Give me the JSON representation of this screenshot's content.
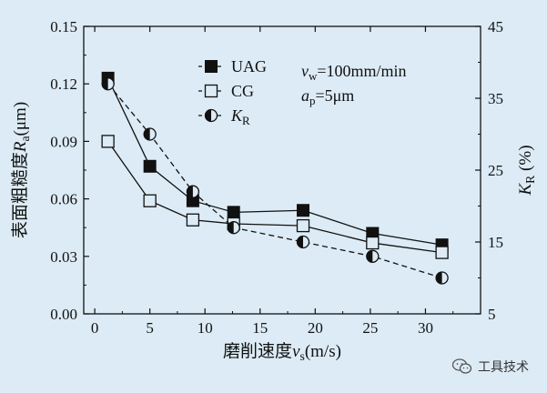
{
  "chart_data": {
    "type": "line",
    "title": "",
    "xlabel": "磨削速度",
    "xlabel_var": "v",
    "xlabel_sub": "s",
    "xlabel_unit": "(m/s)",
    "ylabel_left": "表面粗糙度",
    "ylabel_left_var": "R",
    "ylabel_left_sub": "a",
    "ylabel_left_unit": "(μm)",
    "ylabel_right_var": "K",
    "ylabel_right_sub": "R",
    "ylabel_right_unit": "(%)",
    "xlim": [
      -1,
      35
    ],
    "ylim_left": [
      0.0,
      0.15
    ],
    "ylim_right": [
      5,
      45
    ],
    "x_ticks": [
      0,
      5,
      10,
      15,
      20,
      25,
      30
    ],
    "x_tick_labels": [
      "0",
      "5",
      "10",
      "15",
      "20",
      "25",
      "30"
    ],
    "y_left_ticks": [
      0.0,
      0.03,
      0.06,
      0.09,
      0.12,
      0.15
    ],
    "y_left_tick_labels": [
      "0.00",
      "0.03",
      "0.06",
      "0.09",
      "0.12",
      "0.15"
    ],
    "y_right_ticks": [
      5,
      15,
      25,
      35,
      45
    ],
    "y_right_tick_labels": [
      "5",
      "15",
      "25",
      "35",
      "45"
    ],
    "grid": false,
    "legend_position": "top-right",
    "annotations": [
      {
        "var": "v",
        "sub": "w",
        "text": "=100mm/min"
      },
      {
        "var": "a",
        "sub": "p",
        "text": "=5μm"
      }
    ],
    "series": [
      {
        "name": "UAG",
        "axis": "left",
        "marker": "filled-square",
        "line": "solid",
        "x": [
          1.2,
          5.0,
          8.9,
          12.6,
          18.9,
          25.2,
          31.5
        ],
        "values": [
          0.123,
          0.077,
          0.059,
          0.053,
          0.054,
          0.042,
          0.036
        ]
      },
      {
        "name": "CG",
        "axis": "left",
        "marker": "open-square",
        "line": "solid",
        "x": [
          1.2,
          5.0,
          8.9,
          12.6,
          18.9,
          25.2,
          31.5
        ],
        "values": [
          0.09,
          0.059,
          0.049,
          0.047,
          0.046,
          0.037,
          0.032
        ]
      },
      {
        "name_var": "K",
        "name_sub": "R",
        "axis": "right",
        "marker": "half-circle",
        "line": "dashed",
        "x": [
          1.2,
          5.0,
          8.9,
          12.6,
          18.9,
          25.2,
          31.5
        ],
        "values": [
          37.0,
          30.0,
          22.0,
          17.0,
          15.0,
          13.0,
          10.0
        ]
      }
    ]
  },
  "watermark": {
    "text": "工具技术",
    "icon": "wechat-icon"
  },
  "colors": {
    "background": "#dcebf5",
    "ink": "#111111"
  }
}
